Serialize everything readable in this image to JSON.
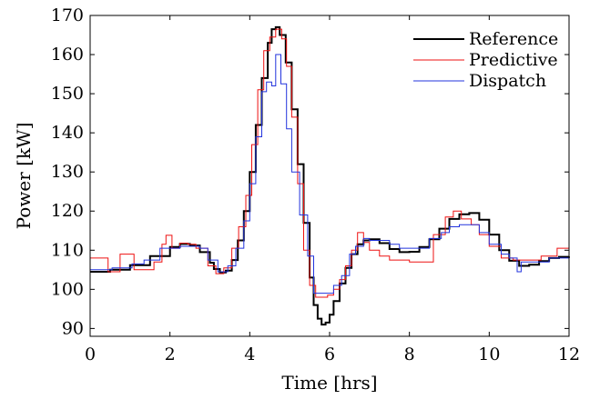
{
  "chart_data": {
    "type": "line",
    "title": "",
    "xlabel": "Time [hrs]",
    "ylabel": "Power [kW]",
    "xlim": [
      0,
      12
    ],
    "ylim": [
      88,
      170
    ],
    "xticks": [
      0,
      2,
      4,
      6,
      8,
      10,
      12
    ],
    "yticks": [
      90,
      100,
      110,
      120,
      130,
      140,
      150,
      160,
      170
    ],
    "grid": false,
    "legend_position": "top-right",
    "series": [
      {
        "name": "Reference",
        "color": "#000000",
        "style": "step",
        "x": [
          0,
          0.5,
          1.0,
          1.5,
          2.0,
          2.25,
          2.5,
          2.75,
          3.0,
          3.1,
          3.25,
          3.4,
          3.55,
          3.7,
          3.85,
          4.0,
          4.15,
          4.3,
          4.45,
          4.55,
          4.65,
          4.75,
          4.9,
          5.05,
          5.2,
          5.35,
          5.5,
          5.6,
          5.7,
          5.8,
          5.9,
          6.0,
          6.1,
          6.25,
          6.4,
          6.55,
          6.7,
          6.85,
          7.0,
          7.25,
          7.5,
          7.75,
          8.0,
          8.25,
          8.5,
          8.75,
          9.0,
          9.25,
          9.5,
          9.75,
          10.0,
          10.25,
          10.5,
          10.75,
          11.0,
          11.25,
          11.5,
          11.75,
          12.0
        ],
        "y": [
          104.5,
          105,
          106.2,
          108.5,
          110.8,
          111.6,
          111.2,
          109.5,
          106.8,
          105.2,
          104.3,
          104.8,
          107.5,
          112.5,
          120,
          130,
          142,
          154,
          163,
          166.5,
          167,
          165,
          158,
          146,
          132,
          117,
          103,
          96,
          92.5,
          91,
          91.5,
          93.5,
          97,
          101.5,
          105.5,
          109,
          111.5,
          112.5,
          112.8,
          111.8,
          110.3,
          109.5,
          109.6,
          110.8,
          112.8,
          115.5,
          118,
          119.2,
          119.5,
          117.8,
          114,
          110,
          107.3,
          106,
          106.3,
          107.2,
          108,
          108.3,
          108.4
        ]
      },
      {
        "name": "Predictive",
        "color": "#ee1111",
        "style": "step",
        "x": [
          0,
          0.45,
          0.75,
          1.1,
          1.6,
          1.8,
          1.9,
          2.05,
          2.25,
          2.45,
          2.65,
          2.95,
          3.15,
          3.35,
          3.55,
          3.72,
          3.9,
          4.05,
          4.2,
          4.35,
          4.5,
          4.65,
          4.8,
          4.92,
          5.05,
          5.2,
          5.35,
          5.5,
          5.65,
          5.8,
          5.95,
          6.1,
          6.25,
          6.4,
          6.55,
          6.7,
          6.85,
          7.0,
          7.25,
          7.5,
          8.0,
          8.6,
          8.9,
          9.1,
          9.3,
          9.55,
          9.75,
          10.0,
          10.3,
          10.6,
          10.9,
          11.3,
          11.7,
          12.0
        ],
        "y": [
          108,
          104.5,
          109,
          105,
          107,
          111.5,
          113.8,
          110.5,
          111.8,
          111.5,
          110.5,
          106,
          104,
          105.5,
          110.5,
          116,
          124,
          137,
          151,
          161,
          164.5,
          166.5,
          164,
          157,
          144,
          127,
          110,
          101,
          98,
          98,
          98.5,
          100,
          102.5,
          106,
          110,
          114.5,
          112,
          110,
          108.5,
          107.5,
          107,
          114,
          118.5,
          120,
          118,
          116.5,
          114,
          111,
          108,
          107.5,
          107.5,
          108.5,
          110.5,
          110.5
        ]
      },
      {
        "name": "Dispatch",
        "color": "#2233dd",
        "style": "step",
        "x": [
          0,
          0.55,
          1.05,
          1.35,
          1.75,
          2.25,
          2.75,
          2.95,
          3.2,
          3.45,
          3.65,
          3.85,
          4.0,
          4.15,
          4.3,
          4.42,
          4.55,
          4.65,
          4.78,
          4.92,
          5.05,
          5.25,
          5.45,
          5.6,
          6.1,
          6.3,
          6.5,
          6.65,
          6.85,
          7.0,
          7.5,
          7.75,
          8.5,
          8.8,
          9.0,
          9.25,
          9.5,
          9.75,
          10.0,
          10.3,
          10.5,
          10.7,
          10.8,
          11.0,
          11.5,
          12.0
        ],
        "y": [
          105,
          105.5,
          106.5,
          107.5,
          110.5,
          111,
          110.5,
          107.5,
          104.5,
          106,
          110.5,
          117.5,
          127,
          139,
          150.5,
          153,
          152,
          160,
          152.5,
          141,
          130,
          119,
          108.5,
          99,
          101,
          103.5,
          109,
          111,
          113,
          112.5,
          111.5,
          110.5,
          113,
          114.5,
          116,
          116.5,
          116.5,
          114.5,
          111.5,
          109,
          108,
          104.5,
          107,
          107,
          108,
          109
        ]
      }
    ]
  }
}
